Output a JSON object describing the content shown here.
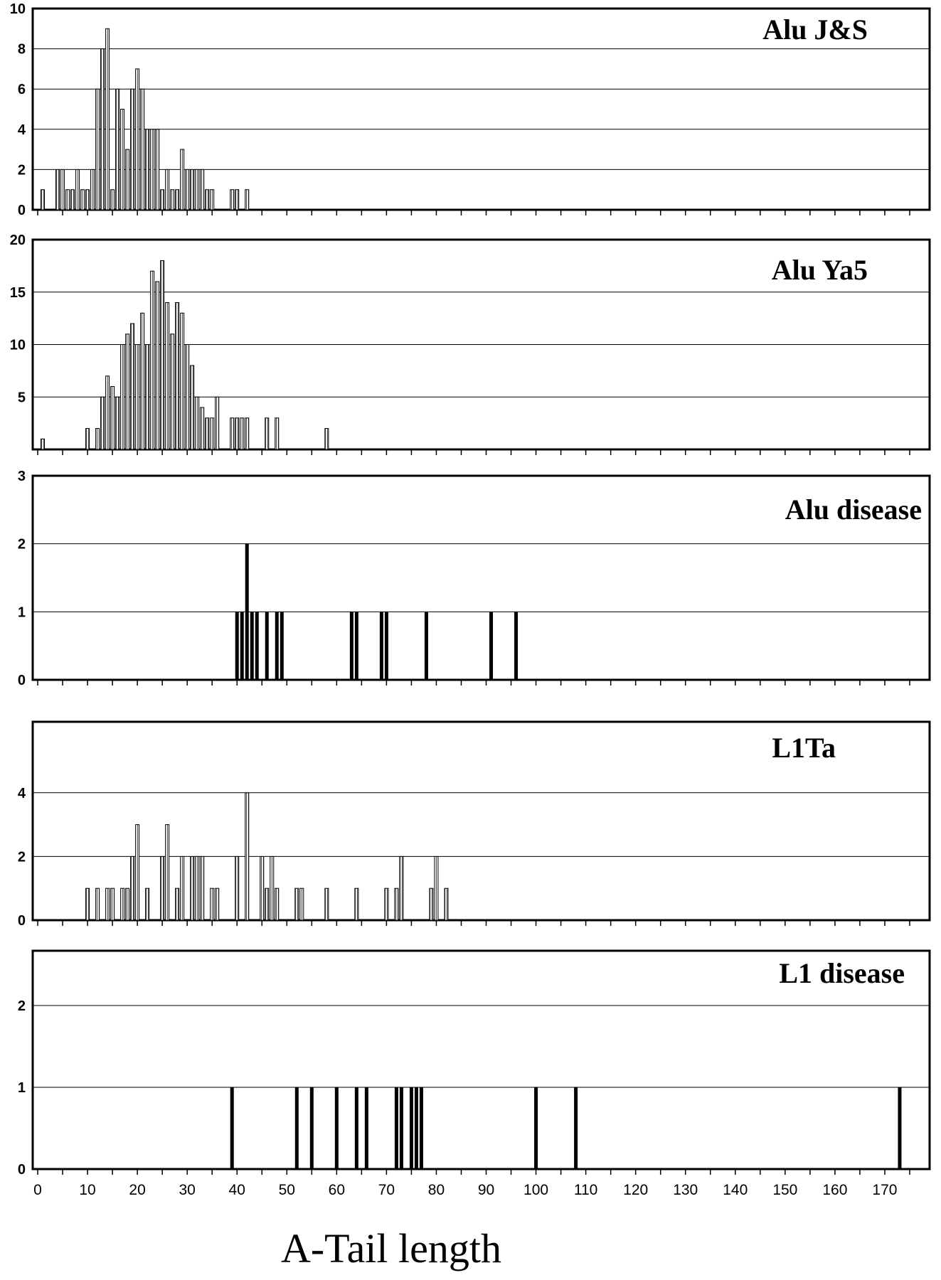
{
  "chart_data": [
    {
      "type": "bar",
      "title": "Alu J&S",
      "ylim": [
        0,
        10
      ],
      "yticks": [
        0,
        2,
        4,
        6,
        8,
        10
      ],
      "grid": true,
      "bar_style": "hatched",
      "x": [
        1,
        4,
        5,
        6,
        7,
        8,
        9,
        10,
        11,
        12,
        13,
        14,
        15,
        16,
        17,
        18,
        19,
        20,
        21,
        22,
        23,
        24,
        25,
        26,
        27,
        28,
        29,
        30,
        31,
        32,
        33,
        34,
        35,
        39,
        40,
        42
      ],
      "values": [
        1,
        2,
        2,
        1,
        1,
        2,
        1,
        1,
        2,
        6,
        8,
        9,
        1,
        6,
        5,
        3,
        6,
        7,
        6,
        4,
        4,
        4,
        1,
        2,
        1,
        1,
        3,
        2,
        2,
        2,
        2,
        1,
        1,
        1,
        1,
        1
      ]
    },
    {
      "type": "bar",
      "title": "Alu Ya5",
      "ylim": [
        0,
        20
      ],
      "yticks": [
        5,
        10,
        15,
        20
      ],
      "grid": true,
      "bar_style": "hatched",
      "x": [
        1,
        10,
        12,
        13,
        14,
        15,
        16,
        17,
        18,
        19,
        20,
        21,
        22,
        23,
        24,
        25,
        26,
        27,
        28,
        29,
        30,
        31,
        32,
        33,
        34,
        35,
        36,
        39,
        40,
        41,
        42,
        46,
        48,
        58
      ],
      "values": [
        1,
        2,
        2,
        5,
        7,
        6,
        5,
        10,
        11,
        12,
        10,
        13,
        10,
        17,
        16,
        18,
        14,
        11,
        14,
        13,
        10,
        8,
        5,
        4,
        3,
        3,
        5,
        3,
        3,
        3,
        3,
        3,
        3,
        2
      ]
    },
    {
      "type": "bar",
      "title": "Alu disease",
      "ylim": [
        0,
        3
      ],
      "yticks": [
        0,
        1,
        2,
        3
      ],
      "grid": true,
      "bar_style": "solid",
      "x": [
        40,
        41,
        42,
        43,
        44,
        46,
        48,
        49,
        63,
        64,
        69,
        70,
        78,
        91,
        96
      ],
      "values": [
        1,
        1,
        2,
        1,
        1,
        1,
        1,
        1,
        1,
        1,
        1,
        1,
        1,
        1,
        1
      ]
    },
    {
      "type": "bar",
      "title": "L1Ta",
      "ylim": [
        0,
        5
      ],
      "yticks": [
        0,
        2,
        4
      ],
      "grid": true,
      "bar_style": "hatched",
      "x": [
        10,
        12,
        14,
        15,
        17,
        18,
        19,
        20,
        22,
        25,
        26,
        28,
        29,
        31,
        32,
        33,
        35,
        36,
        40,
        42,
        45,
        46,
        47,
        48,
        52,
        53,
        58,
        64,
        70,
        72,
        73,
        79,
        80,
        82
      ],
      "values": [
        1,
        1,
        1,
        1,
        1,
        1,
        2,
        3,
        1,
        2,
        3,
        1,
        2,
        2,
        2,
        2,
        1,
        1,
        2,
        4,
        2,
        1,
        2,
        1,
        1,
        1,
        1,
        1,
        1,
        1,
        2,
        1,
        2,
        1
      ]
    },
    {
      "type": "bar",
      "title": "L1 disease",
      "ylim": [
        0,
        3
      ],
      "yticks": [
        0,
        1,
        2
      ],
      "grid": true,
      "bar_style": "solid",
      "x": [
        39,
        52,
        55,
        60,
        64,
        66,
        72,
        73,
        75,
        76,
        77,
        100,
        108,
        173
      ],
      "values": [
        1,
        1,
        1,
        1,
        1,
        1,
        1,
        1,
        1,
        1,
        1,
        1,
        1,
        1
      ],
      "xticks": [
        0,
        10,
        20,
        30,
        40,
        50,
        60,
        70,
        80,
        90,
        100,
        110,
        120,
        130,
        140,
        150,
        160,
        170
      ],
      "xlabel": "A-Tail length"
    }
  ],
  "xlim": [
    -1,
    179
  ]
}
